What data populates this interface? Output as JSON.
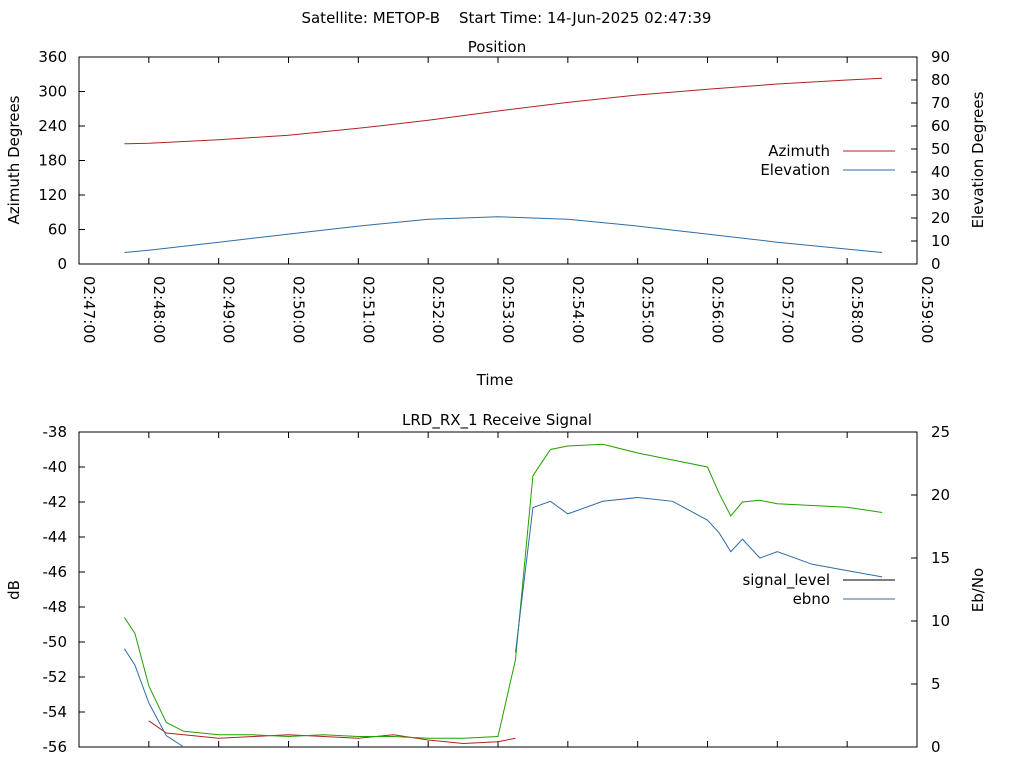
{
  "header": {
    "satellite_text": "Satellite: METOP-B",
    "start_time_text": "Start Time: 14-Jun-2025 02:47:39"
  },
  "chart_data": [
    {
      "type": "line",
      "title": "Position",
      "xlabel": "Time",
      "ylabel": "Azimuth Degrees",
      "y2label": "Elevation Degrees",
      "xlim": [
        "02:47:00",
        "02:59:00"
      ],
      "ylim": [
        0,
        360
      ],
      "y2lim": [
        0,
        90
      ],
      "grid": false,
      "legend": "right",
      "x_tick_labels": [
        "02:47:00",
        "02:48:00",
        "02:49:00",
        "02:50:00",
        "02:51:00",
        "02:52:00",
        "02:53:00",
        "02:54:00",
        "02:55:00",
        "02:56:00",
        "02:57:00",
        "02:58:00",
        "02:59:00"
      ],
      "y_tick_labels": [
        "0",
        "60",
        "120",
        "180",
        "240",
        "300",
        "360"
      ],
      "y2_tick_labels": [
        "0",
        "10",
        "20",
        "30",
        "40",
        "50",
        "60",
        "70",
        "80",
        "90"
      ],
      "x": [
        "02:47:39",
        "02:48:00",
        "02:49:00",
        "02:50:00",
        "02:51:00",
        "02:52:00",
        "02:53:00",
        "02:54:00",
        "02:55:00",
        "02:56:00",
        "02:57:00",
        "02:58:00",
        "02:58:30"
      ],
      "series": [
        {
          "name": "Azimuth",
          "axis": "left",
          "color": "#b22222",
          "values": [
            209,
            210,
            216,
            224,
            236,
            250,
            266,
            281,
            294,
            304,
            313,
            320,
            323
          ]
        },
        {
          "name": "Elevation",
          "axis": "right",
          "color": "#2e6da4",
          "values": [
            5,
            6,
            9.5,
            13,
            16.5,
            19.5,
            20.5,
            19.5,
            16.5,
            13,
            9.5,
            6.5,
            5
          ]
        }
      ]
    },
    {
      "type": "line",
      "title": "LRD_RX_1 Receive Signal",
      "xlabel": "",
      "ylabel": "dB",
      "y2label": "Eb/No",
      "xlim": [
        "02:47:00",
        "02:59:00"
      ],
      "ylim": [
        -56,
        -38
      ],
      "y2lim": [
        0,
        25
      ],
      "grid": false,
      "legend": "right",
      "y_tick_labels": [
        "-56",
        "-54",
        "-52",
        "-50",
        "-48",
        "-46",
        "-44",
        "-42",
        "-40",
        "-38"
      ],
      "y2_tick_labels": [
        "0",
        "5",
        "10",
        "15",
        "20",
        "25"
      ],
      "x": [
        "02:47:39",
        "02:47:48",
        "02:48:00",
        "02:48:15",
        "02:48:30",
        "02:49:00",
        "02:49:30",
        "02:50:00",
        "02:50:30",
        "02:51:00",
        "02:51:30",
        "02:52:00",
        "02:52:30",
        "02:53:00",
        "02:53:15",
        "02:53:30",
        "02:53:45",
        "02:54:00",
        "02:54:30",
        "02:55:00",
        "02:55:30",
        "02:56:00",
        "02:56:10",
        "02:56:20",
        "02:56:30",
        "02:56:45",
        "02:57:00",
        "02:57:30",
        "02:58:00",
        "02:58:30"
      ],
      "series": [
        {
          "name": "signal_level",
          "axis": "left",
          "color": "#b22222",
          "values": [
            null,
            null,
            -54.5,
            -55.2,
            -55.3,
            -55.5,
            -55.4,
            -55.3,
            -55.4,
            -55.5,
            -55.3,
            -55.6,
            -55.8,
            -55.7,
            -55.5,
            null,
            null,
            null,
            null,
            null,
            null,
            null,
            null,
            null,
            null,
            null,
            null,
            null,
            null,
            null
          ]
        },
        {
          "name": "",
          "axis": "left",
          "color": "#22a000",
          "values": [
            -48.6,
            -49.5,
            -52.5,
            -54.6,
            -55.1,
            -55.3,
            -55.3,
            -55.4,
            -55.3,
            -55.4,
            -55.4,
            -55.5,
            -55.5,
            -55.4,
            -51.0,
            -40.5,
            -39.0,
            -38.8,
            -38.7,
            -39.2,
            -39.6,
            -40.0,
            -41.5,
            -42.8,
            -42.0,
            -41.9,
            -42.1,
            -42.2,
            -42.3,
            -42.6
          ]
        },
        {
          "name": "ebno",
          "axis": "right",
          "color": "#2e6da4",
          "values": [
            7.8,
            6.5,
            3.5,
            0.9,
            0,
            null,
            null,
            null,
            null,
            null,
            null,
            null,
            null,
            null,
            7.5,
            19.0,
            19.5,
            18.5,
            19.5,
            19.8,
            19.5,
            18.0,
            17.0,
            15.5,
            16.5,
            15.0,
            15.5,
            14.5,
            14.0,
            13.5
          ]
        }
      ]
    }
  ]
}
